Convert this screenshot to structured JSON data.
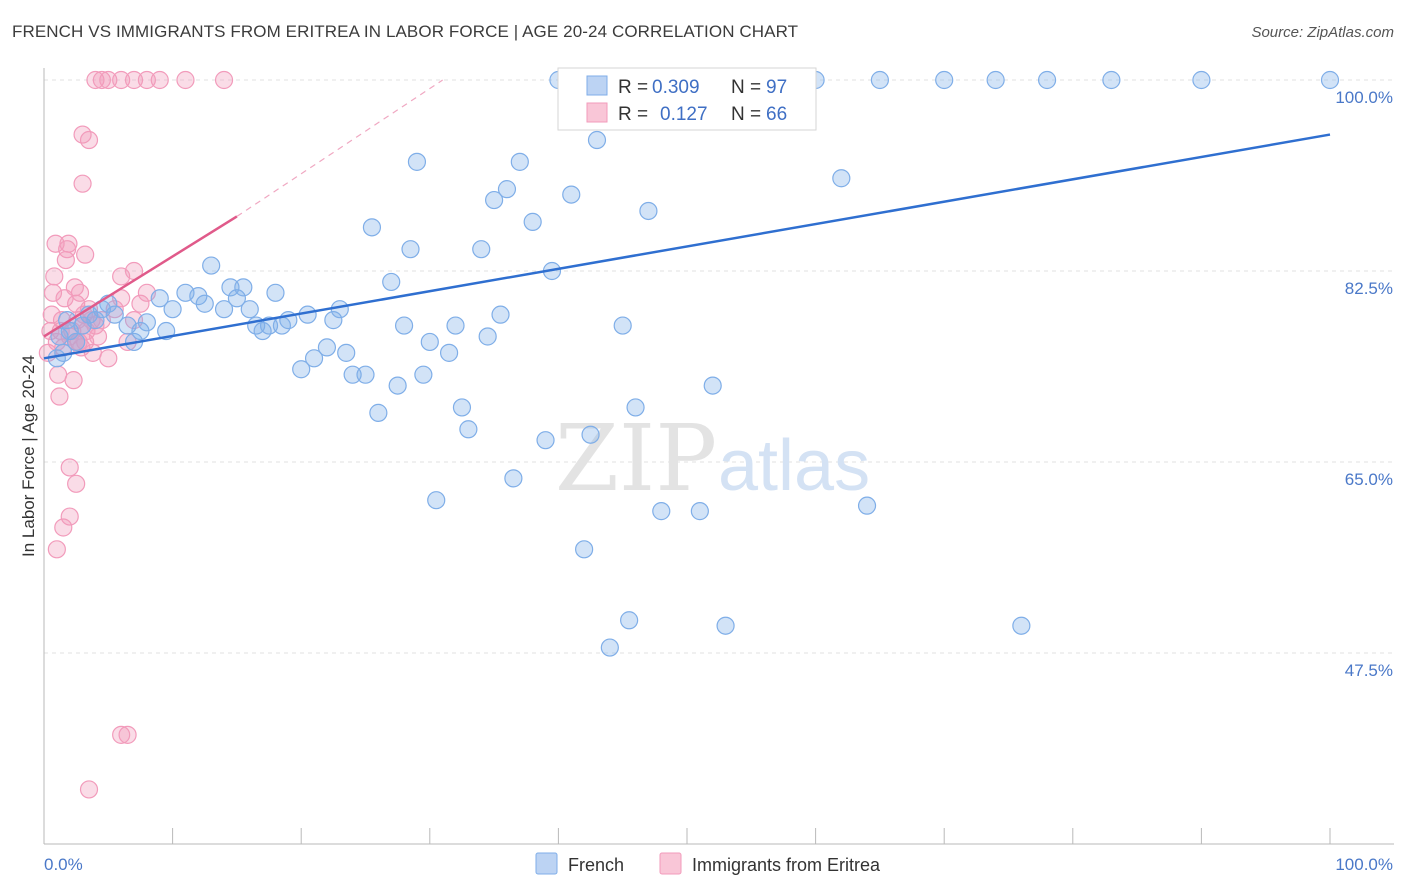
{
  "chart_data": {
    "type": "scatter",
    "title": "FRENCH VS IMMIGRANTS FROM ERITREA IN LABOR FORCE | AGE 20-24 CORRELATION CHART",
    "source": "Source: ZipAtlas.com",
    "ylabel": "In Labor Force | Age 20-24",
    "xlim": [
      0,
      100
    ],
    "ylim": [
      30,
      102
    ],
    "x_tick_labels": [
      "0.0%",
      "100.0%"
    ],
    "y_ticks": [
      47.5,
      65.0,
      82.5,
      100.0
    ],
    "y_tick_labels": [
      "47.5%",
      "65.0%",
      "82.5%",
      "100.0%"
    ],
    "grid": true,
    "watermark": {
      "zip": "ZIP",
      "atlas": "atlas"
    },
    "legend_inset": [
      {
        "r_label": "R =",
        "r_value": "0.309",
        "n_label": "N =",
        "n_value": "97"
      },
      {
        "r_label": "R =",
        "r_value": "0.127",
        "n_label": "N =",
        "n_value": "66"
      }
    ],
    "legend": [
      "French",
      "Immigrants from Eritrea"
    ],
    "series": [
      {
        "name": "French",
        "color": "#7faee8",
        "line_color": "#2f6fd0",
        "trend": {
          "x": [
            0,
            100
          ],
          "y": [
            74.5,
            95.0
          ]
        },
        "points": [
          [
            1,
            74.5
          ],
          [
            1.2,
            76.5
          ],
          [
            1.5,
            75
          ],
          [
            2,
            77
          ],
          [
            2.5,
            76
          ],
          [
            3,
            77.5
          ],
          [
            3.5,
            78.5
          ],
          [
            4,
            78
          ],
          [
            4.5,
            79
          ],
          [
            5,
            79.5
          ],
          [
            5.5,
            78.5
          ],
          [
            6.5,
            77.5
          ],
          [
            7,
            76
          ],
          [
            7.5,
            77
          ],
          [
            8,
            77.8
          ],
          [
            9,
            80
          ],
          [
            9.5,
            77
          ],
          [
            10,
            79
          ],
          [
            11,
            80.5
          ],
          [
            12,
            80.2
          ],
          [
            12.5,
            79.5
          ],
          [
            13,
            83
          ],
          [
            14,
            79
          ],
          [
            14.5,
            81
          ],
          [
            15,
            80
          ],
          [
            15.5,
            81
          ],
          [
            16,
            79
          ],
          [
            16.5,
            77.5
          ],
          [
            17,
            77
          ],
          [
            17.5,
            77.5
          ],
          [
            18,
            80.5
          ],
          [
            18.5,
            77.5
          ],
          [
            19,
            78
          ],
          [
            20,
            73.5
          ],
          [
            20.5,
            78.5
          ],
          [
            21,
            74.5
          ],
          [
            22,
            75.5
          ],
          [
            22.5,
            78
          ],
          [
            23,
            79
          ],
          [
            23.5,
            75
          ],
          [
            24,
            73
          ],
          [
            25,
            73
          ],
          [
            25.5,
            86.5
          ],
          [
            26,
            69.5
          ],
          [
            27,
            81.5
          ],
          [
            27.5,
            72
          ],
          [
            28,
            77.5
          ],
          [
            28.5,
            84.5
          ],
          [
            29,
            92.5
          ],
          [
            29.5,
            73
          ],
          [
            30,
            76
          ],
          [
            30.5,
            61.5
          ],
          [
            31.5,
            75
          ],
          [
            32,
            77.5
          ],
          [
            32.5,
            70
          ],
          [
            33,
            68
          ],
          [
            34,
            84.5
          ],
          [
            34.5,
            76.5
          ],
          [
            35,
            89
          ],
          [
            35.5,
            78.5
          ],
          [
            36,
            90
          ],
          [
            36.5,
            63.5
          ],
          [
            37,
            92.5
          ],
          [
            38,
            87
          ],
          [
            39,
            67
          ],
          [
            39.5,
            82.5
          ],
          [
            40,
            100
          ],
          [
            41,
            89.5
          ],
          [
            42,
            57
          ],
          [
            42.5,
            67.5
          ],
          [
            43,
            94.5
          ],
          [
            44,
            48
          ],
          [
            45,
            77.5
          ],
          [
            45.5,
            50.5
          ],
          [
            46,
            70
          ],
          [
            46.5,
            97
          ],
          [
            47,
            88
          ],
          [
            48,
            60.5
          ],
          [
            50,
            100
          ],
          [
            50.5,
            100
          ],
          [
            51,
            60.5
          ],
          [
            52,
            72
          ],
          [
            53,
            50
          ],
          [
            55,
            100
          ],
          [
            57,
            100
          ],
          [
            60,
            100
          ],
          [
            62,
            91
          ],
          [
            64,
            61
          ],
          [
            65,
            100
          ],
          [
            70,
            100
          ],
          [
            74,
            100
          ],
          [
            76,
            50
          ],
          [
            78,
            100
          ],
          [
            83,
            100
          ],
          [
            90,
            100
          ],
          [
            100,
            100
          ],
          [
            1.8,
            78
          ]
        ]
      },
      {
        "name": "Immigrants from Eritrea",
        "color": "#f29bbb",
        "line_color": "#e05a8a",
        "trend": {
          "x": [
            0,
            15
          ],
          "y": [
            76.5,
            87.5
          ]
        },
        "trend_extension": {
          "x": [
            15,
            31
          ],
          "y": [
            87.5,
            100
          ]
        },
        "points": [
          [
            0.3,
            75
          ],
          [
            0.5,
            77
          ],
          [
            0.6,
            78.5
          ],
          [
            0.7,
            80.5
          ],
          [
            0.8,
            82
          ],
          [
            0.9,
            85
          ],
          [
            1,
            76
          ],
          [
            1.1,
            73
          ],
          [
            1.2,
            71
          ],
          [
            1.3,
            77
          ],
          [
            1.4,
            78
          ],
          [
            1.5,
            75.5
          ],
          [
            1.6,
            80
          ],
          [
            1.7,
            83.5
          ],
          [
            1.8,
            84.5
          ],
          [
            1.9,
            85
          ],
          [
            2,
            76.5
          ],
          [
            2.2,
            77
          ],
          [
            2.3,
            72.5
          ],
          [
            2.4,
            81
          ],
          [
            2.5,
            79.5
          ],
          [
            2.6,
            78
          ],
          [
            2.7,
            76
          ],
          [
            2.8,
            80.5
          ],
          [
            2.9,
            75.5
          ],
          [
            3,
            77.5
          ],
          [
            3.1,
            78.5
          ],
          [
            3.2,
            76
          ],
          [
            3.3,
            77
          ],
          [
            3.5,
            79
          ],
          [
            3.7,
            78
          ],
          [
            3.8,
            75
          ],
          [
            4,
            77.5
          ],
          [
            4.2,
            76.5
          ],
          [
            4.5,
            78
          ],
          [
            5,
            74.5
          ],
          [
            5.5,
            79
          ],
          [
            6,
            80
          ],
          [
            6.5,
            76
          ],
          [
            7,
            78
          ],
          [
            7.5,
            79.5
          ],
          [
            8,
            80.5
          ],
          [
            1,
            57
          ],
          [
            1.5,
            59
          ],
          [
            2,
            64.5
          ],
          [
            2.5,
            63
          ],
          [
            3,
            95
          ],
          [
            3.5,
            94.5
          ],
          [
            3,
            90.5
          ],
          [
            3.2,
            84
          ],
          [
            4,
            100
          ],
          [
            4.5,
            100
          ],
          [
            5,
            100
          ],
          [
            6,
            100
          ],
          [
            7,
            100
          ],
          [
            8,
            100
          ],
          [
            9,
            100
          ],
          [
            11,
            100
          ],
          [
            14,
            100
          ],
          [
            6,
            40
          ],
          [
            6.5,
            40
          ],
          [
            3.5,
            35
          ],
          [
            6,
            82
          ],
          [
            7,
            82.5
          ],
          [
            2,
            60
          ],
          [
            2.5,
            76
          ]
        ]
      }
    ]
  }
}
